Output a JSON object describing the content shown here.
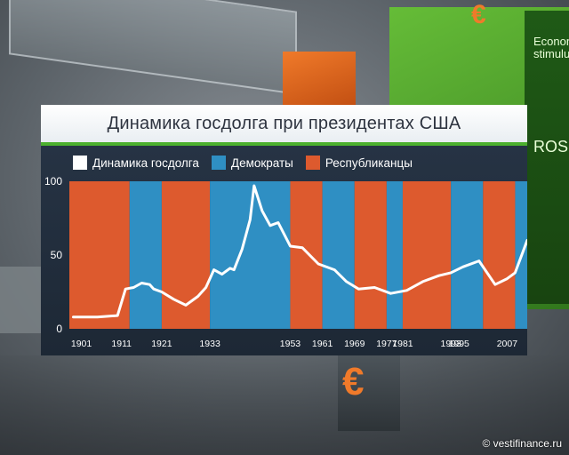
{
  "watermark": "© vestifinance.ru",
  "background": {
    "green_panel_text": "Econom stimulu",
    "green_panel_sub": "ROSN",
    "euro_symbol": "€"
  },
  "colors": {
    "democrat": "#2f8fc3",
    "republican": "#dd5a2e",
    "line": "#ffffff",
    "accent_green": "#4cb02e"
  },
  "chart_data": {
    "type": "line",
    "title": "Динамика госдолга при президентах США",
    "legend": [
      {
        "label": "Динамика госдолга",
        "color": "#ffffff"
      },
      {
        "label": "Демократы",
        "color": "#2f8fc3"
      },
      {
        "label": "Республиканцы",
        "color": "#dd5a2e"
      }
    ],
    "legend_position": "top-left",
    "ylim": [
      0,
      100
    ],
    "y_ticks": [
      0,
      50,
      100
    ],
    "xlim": [
      1898,
      2012
    ],
    "x_tick_labels": [
      "1901",
      "1911",
      "1921",
      "1933",
      "1953",
      "1961",
      "1969",
      "1977",
      "1981",
      "1993",
      "1995",
      "2007"
    ],
    "periods": [
      {
        "start": 1898,
        "end": 1913,
        "party": "R"
      },
      {
        "start": 1913,
        "end": 1921,
        "party": "D"
      },
      {
        "start": 1921,
        "end": 1933,
        "party": "R"
      },
      {
        "start": 1933,
        "end": 1953,
        "party": "D"
      },
      {
        "start": 1953,
        "end": 1961,
        "party": "R"
      },
      {
        "start": 1961,
        "end": 1969,
        "party": "D"
      },
      {
        "start": 1969,
        "end": 1977,
        "party": "R"
      },
      {
        "start": 1977,
        "end": 1981,
        "party": "D"
      },
      {
        "start": 1981,
        "end": 1993,
        "party": "R"
      },
      {
        "start": 1993,
        "end": 2001,
        "party": "D"
      },
      {
        "start": 2001,
        "end": 2009,
        "party": "R"
      },
      {
        "start": 2009,
        "end": 2012,
        "party": "D"
      }
    ],
    "series": [
      {
        "name": "Динамика госдолга",
        "x": [
          1899,
          1905,
          1910,
          1912,
          1914,
          1916,
          1918,
          1919,
          1921,
          1924,
          1927,
          1930,
          1932,
          1934,
          1936,
          1938,
          1939,
          1941,
          1943,
          1944,
          1946,
          1948,
          1950,
          1953,
          1956,
          1960,
          1964,
          1967,
          1970,
          1974,
          1978,
          1982,
          1986,
          1990,
          1993,
          1996,
          2000,
          2004,
          2007,
          2009,
          2012
        ],
        "y": [
          8,
          8,
          9,
          27,
          28,
          31,
          30,
          27,
          25,
          20,
          16,
          22,
          28,
          40,
          37,
          41,
          40,
          54,
          74,
          97,
          80,
          70,
          72,
          56,
          55,
          44,
          40,
          32,
          27,
          28,
          24,
          26,
          32,
          36,
          38,
          42,
          46,
          30,
          34,
          38,
          60
        ]
      }
    ]
  }
}
